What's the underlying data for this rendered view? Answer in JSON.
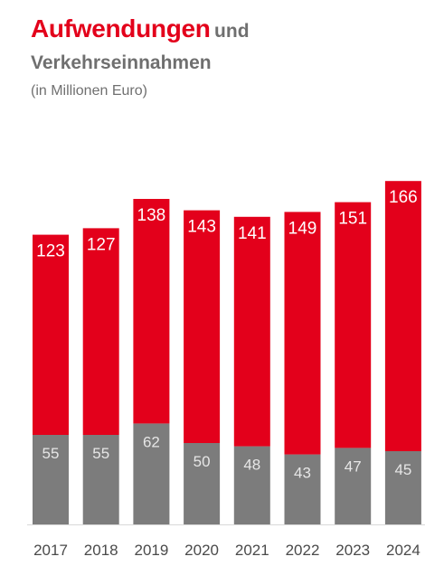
{
  "header": {
    "title_highlight": "Aufwendungen",
    "title_rest": "und",
    "title_line2": "Verkehrseinnahmen",
    "subtitle": "(in Millionen Euro)"
  },
  "colors": {
    "expenses": "#e3001b",
    "revenue": "#7c7c7c",
    "label": "#ffffff",
    "axis_label": "#4a4a4a",
    "axis_line": "#d9d9d9"
  },
  "chart_data": {
    "type": "bar",
    "stacked": true,
    "categories": [
      "2017",
      "2018",
      "2019",
      "2020",
      "2021",
      "2022",
      "2023",
      "2024"
    ],
    "series": [
      {
        "key": "revenue",
        "values": [
          55,
          55,
          62,
          50,
          48,
          43,
          47,
          45
        ]
      },
      {
        "key": "expenses",
        "values": [
          123,
          127,
          138,
          143,
          141,
          149,
          151,
          166
        ]
      }
    ],
    "title": "Aufwendungen und Verkehrseinnahmen",
    "subtitle": "(in Millionen Euro)",
    "xlabel": "",
    "ylabel": "",
    "grid": false,
    "legend": "none"
  }
}
